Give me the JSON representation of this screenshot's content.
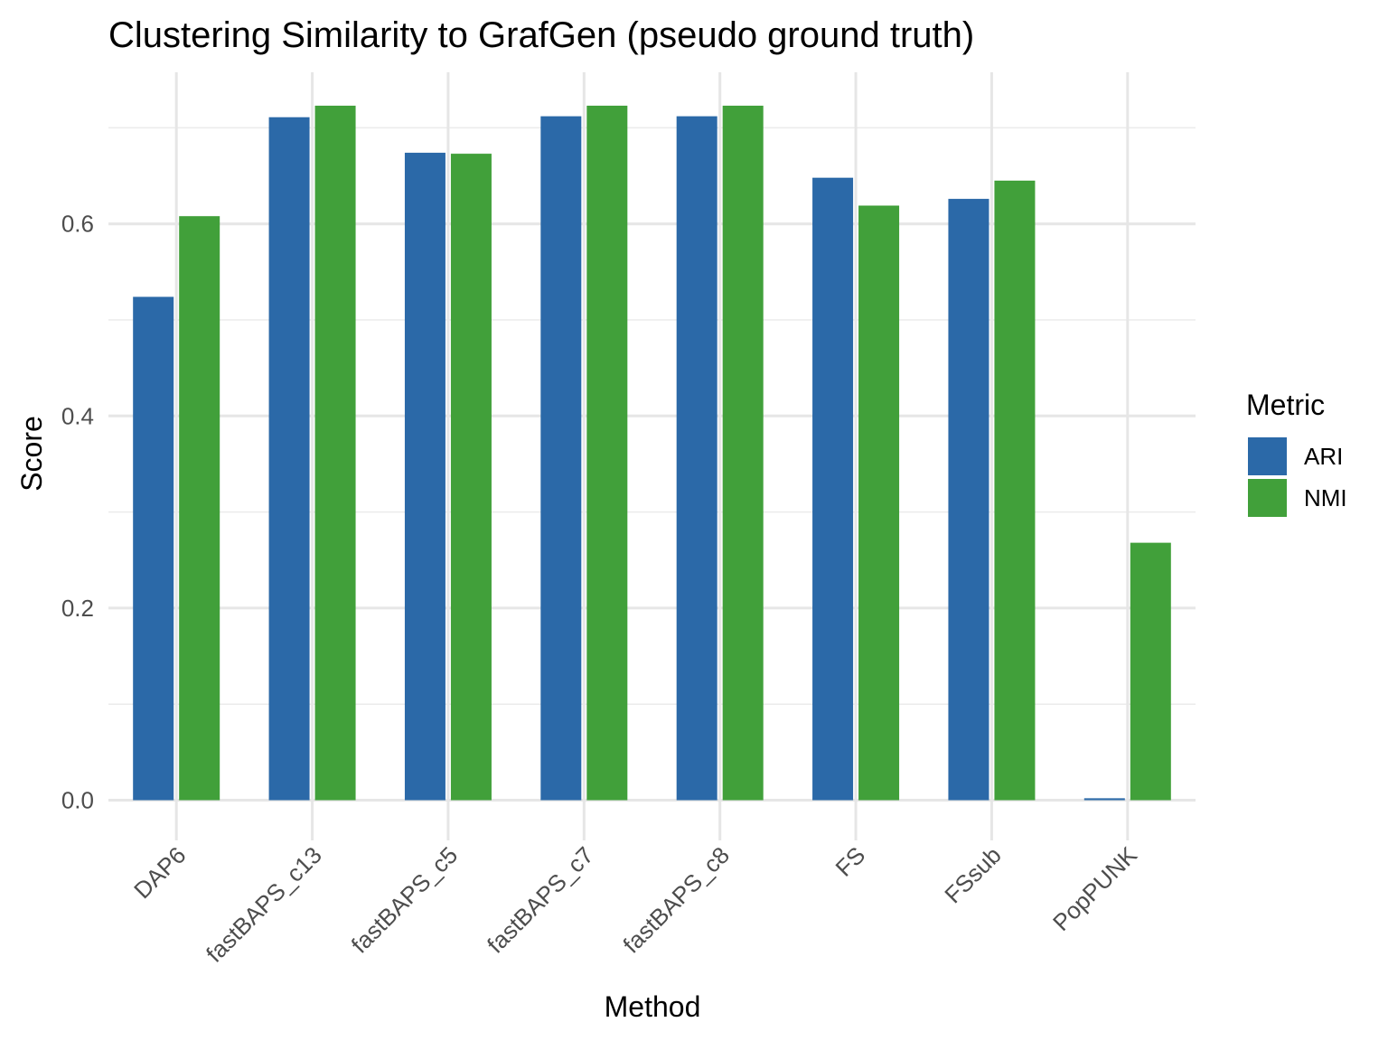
{
  "chart_data": {
    "type": "bar",
    "title": "Clustering Similarity to GrafGen (pseudo ground truth)",
    "xlabel": "Method",
    "ylabel": "Score",
    "categories": [
      "DAP6",
      "fastBAPS_c13",
      "fastBAPS_c5",
      "fastBAPS_c7",
      "fastBAPS_c8",
      "FS",
      "FSsub",
      "PopPUNK"
    ],
    "series": [
      {
        "name": "ARI",
        "color": "#2b69a8",
        "values": [
          0.524,
          0.711,
          0.674,
          0.712,
          0.712,
          0.648,
          0.626,
          0.002
        ]
      },
      {
        "name": "NMI",
        "color": "#41a03a",
        "values": [
          0.608,
          0.723,
          0.673,
          0.723,
          0.723,
          0.619,
          0.645,
          0.268
        ]
      }
    ],
    "ylim": [
      -0.03,
      0.765
    ],
    "y_ticks": [
      "0.0",
      "0.2",
      "0.4",
      "0.6"
    ],
    "grid": true,
    "legend": {
      "title": "Metric",
      "position": "right"
    }
  }
}
